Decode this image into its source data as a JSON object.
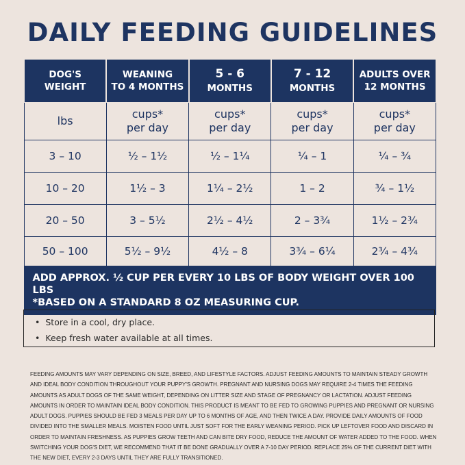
{
  "title": "DAILY FEEDING GUIDELINES",
  "table": {
    "headers": [
      {
        "line1": "DOG'S",
        "line2": "WEIGHT"
      },
      {
        "line1": "WEANING",
        "line2": "TO 4 MONTHS"
      },
      {
        "line1": "5 - 6",
        "line2": "MONTHS"
      },
      {
        "line1": "7 - 12",
        "line2": "MONTHS"
      },
      {
        "line1": "ADULTS OVER",
        "line2": "12 MONTHS"
      }
    ],
    "units": [
      {
        "line1": "lbs",
        "line2": ""
      },
      {
        "line1": "cups*",
        "line2": "per day"
      },
      {
        "line1": "cups*",
        "line2": "per day"
      },
      {
        "line1": "cups*",
        "line2": "per day"
      },
      {
        "line1": "cups*",
        "line2": "per day"
      }
    ],
    "rows": [
      [
        "3 – 10",
        "½ – 1½",
        "½ – 1¼",
        "¼ – 1",
        "¼ – ¾"
      ],
      [
        "10 – 20",
        "1½ – 3",
        "1¼ – 2½",
        "1 – 2",
        "¾ – 1½"
      ],
      [
        "20 – 50",
        "3 – 5½",
        "2½ – 4½",
        "2 – 3¾",
        "1½ – 2¾"
      ],
      [
        "50 – 100",
        "5½ – 9½",
        "4½ – 8",
        "3¾ – 6¼",
        "2¾ – 4¾"
      ]
    ],
    "footer_line1": "ADD APPROX. ½ CUP PER EVERY 10 LBS OF BODY WEIGHT OVER 100 LBS",
    "footer_line2": "*BASED ON A STANDARD 8 OZ MEASURING CUP."
  },
  "notes": [
    "Store in a cool, dry place.",
    "Keep fresh water available at all times."
  ],
  "fine_print": "FEEDING AMOUNTS MAY VARY DEPENDING ON SIZE, BREED, AND LIFESTYLE FACTORS. ADJUST FEEDING AMOUNTS TO MAINTAIN STEADY GROWTH AND IDEAL BODY CONDITION THROUGHOUT YOUR PUPPY'S GROWTH. PREGNANT AND NURSING DOGS MAY REQUIRE 2-4 TIMES THE FEEDING AMOUNTS AS ADULT DOGS OF THE SAME WEIGHT, DEPENDING ON LITTER SIZE AND STAGE OF PREGNANCY OR LACTATION. ADJUST FEEDING AMOUNTS IN ORDER TO MAINTAIN IDEAL BODY CONDITION. THIS PRODUCT IS MEANT TO BE FED TO GROWING PUPPIES AND PREGNANT OR NURSING ADULT DOGS. PUPPIES SHOULD BE FED 3 MEALS PER DAY UP TO 6 MONTHS OF AGE, AND THEN TWICE A DAY. PROVIDE DAILY AMOUNTS OF FOOD DIVIDED INTO THE SMALLER MEALS. MOISTEN FOOD UNTIL JUST SOFT FOR THE EARLY WEANING PERIOD. PICK UP LEFTOVER FOOD AND DISCARD IN ORDER TO MAINTAIN FRESHNESS. AS PUPPIES GROW TEETH AND CAN BITE DRY FOOD, REDUCE THE AMOUNT OF WATER ADDED TO THE FOOD. WHEN SWITCHING YOUR DOG'S DIET, WE RECOMMEND THAT IT BE DONE GRADUALLY OVER A 7-10 DAY PERIOD. REPLACE 25% OF THE CURRENT DIET WITH THE NEW DIET, EVERY 2-3 DAYS UNTIL THEY ARE FULLY TRANSITIONED.",
  "colors": {
    "navy": "#1d3461",
    "background": "#ede4de"
  }
}
